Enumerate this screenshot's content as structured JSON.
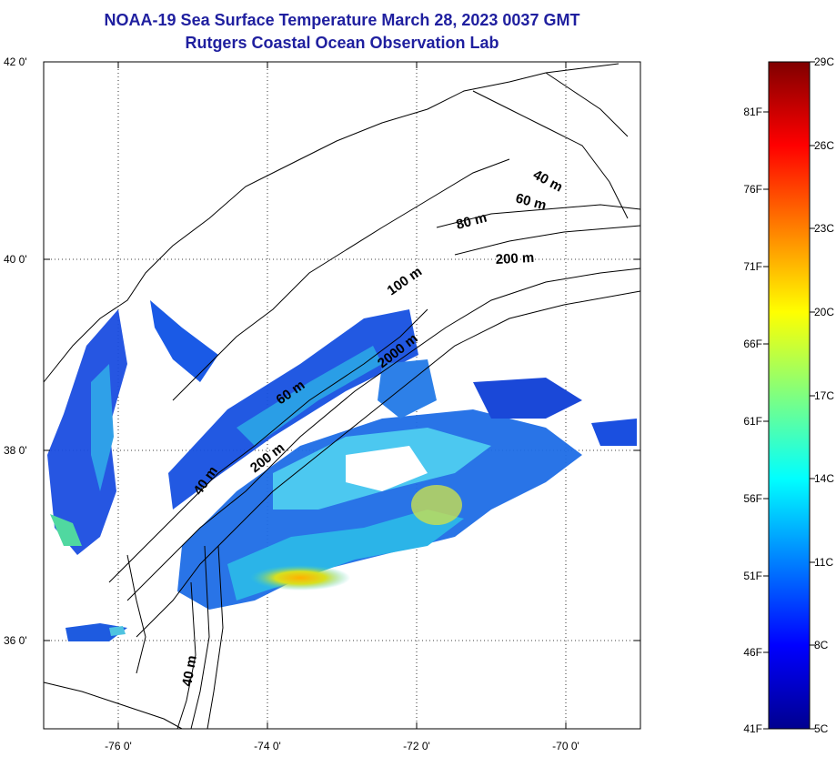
{
  "title": {
    "line1": "NOAA-19 Sea Surface Temperature March 28, 2023 0037 GMT",
    "line2": "Rutgers Coastal Ocean Observation Lab"
  },
  "map": {
    "lat_labels": [
      "42 0'",
      "40 0'",
      "38 0'",
      "36 0'"
    ],
    "lon_labels": [
      "-76 0'",
      "-74 0'",
      "-72 0'",
      "-70 0'"
    ],
    "depth_labels": [
      "40 m",
      "60 m",
      "80 m",
      "200 m",
      "100 m",
      "2000 m",
      "60 m",
      "200 m",
      "40 m",
      "40 m"
    ],
    "colors": {
      "coast": "#000000",
      "grid": "#000000"
    }
  },
  "colorbar": {
    "celsius_labels": [
      "29C",
      "26C",
      "23C",
      "20C",
      "17C",
      "14C",
      "11C",
      "8C",
      "5C"
    ],
    "fahrenheit_labels": [
      "81F",
      "76F",
      "71F",
      "66F",
      "61F",
      "56F",
      "51F",
      "46F",
      "41F"
    ],
    "colormap": "jet",
    "range_c": [
      5,
      29
    ]
  }
}
